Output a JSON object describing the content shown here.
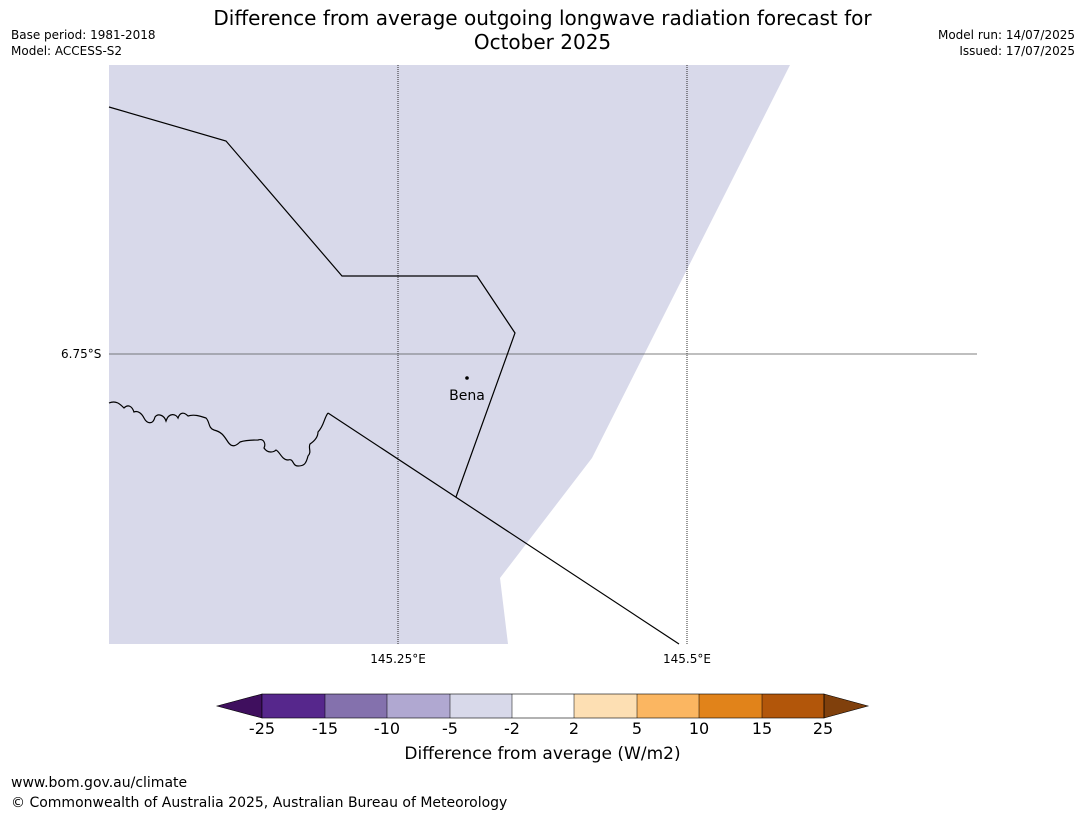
{
  "title_line1": "Difference from average outgoing longwave radiation forecast for",
  "title_line2": "October 2025",
  "meta_left": [
    "Base period: 1981-2018",
    "Model: ACCESS-S2"
  ],
  "meta_right": [
    "Model run: 14/07/2025",
    "Issued: 17/07/2025"
  ],
  "map": {
    "lat_label": "6.75°S",
    "lon_labels": [
      "145.25°E",
      "145.5°E"
    ],
    "place_name": "Bena",
    "field_category": "-5 to -2",
    "field_color": "#d8d9ea",
    "colors": {
      "land_fill": "#d8d9ea",
      "ocean_fill": "#ffffff",
      "border_line": "#000000"
    }
  },
  "colorbar": {
    "label": "Difference from average (W/m2)",
    "ticks": [
      "-25",
      "-15",
      "-10",
      "-5",
      "-2",
      "2",
      "5",
      "10",
      "15",
      "25"
    ],
    "colors": [
      "#3f0f5e",
      "#56278c",
      "#8471ad",
      "#b0a8d1",
      "#d8d9ea",
      "#ffffff",
      "#fddfb3",
      "#fbb661",
      "#e1831a",
      "#b2560a",
      "#80400c"
    ]
  },
  "footer": {
    "url": "www.bom.gov.au/climate",
    "copyright": "© Commonwealth of Australia 2025, Australian Bureau of Meteorology"
  }
}
